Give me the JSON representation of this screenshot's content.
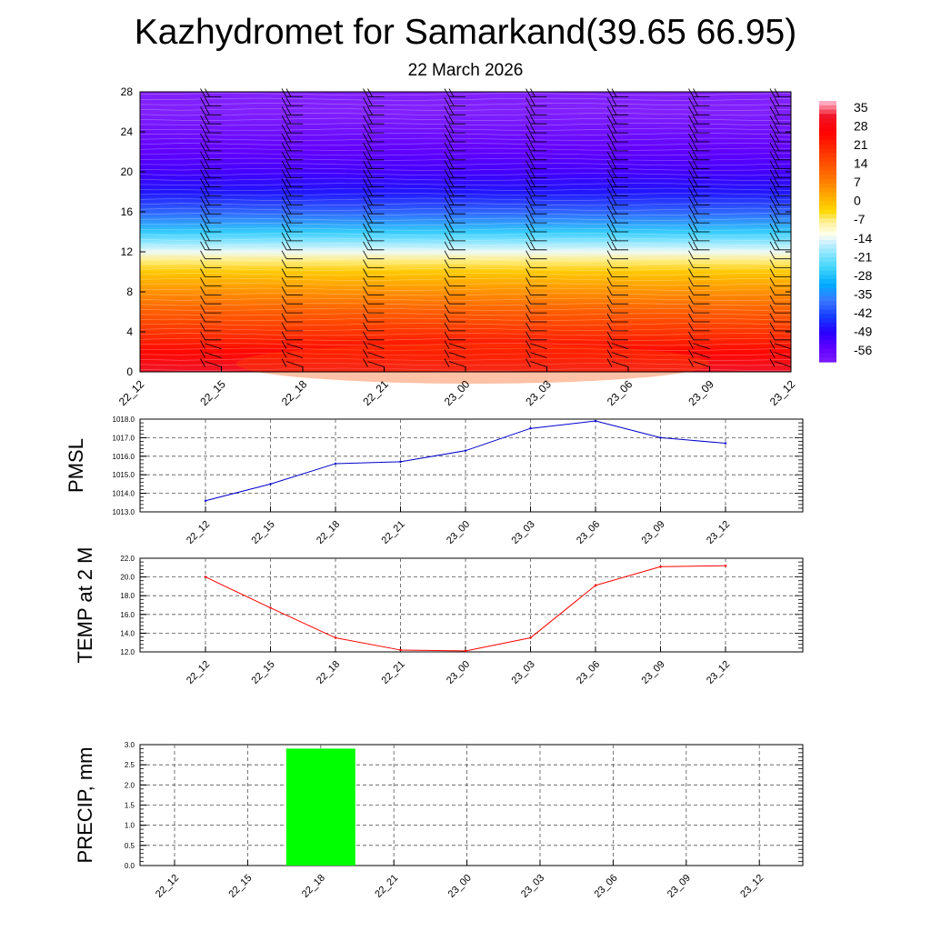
{
  "title": "Kazhydromet for Samarkand(39.65 66.95)",
  "subtitle": "22 March 2026",
  "colors": {
    "pmsl_line": "#0000cc",
    "temp_line": "#ff0000",
    "precip_bar": "#00ff00",
    "grid": "#555555"
  },
  "chart_data": [
    {
      "type": "heatmap",
      "name": "vertical cross-section (temperature and wind barbs)",
      "x_tick_labels": [
        "22_12",
        "22_15",
        "22_18",
        "22_21",
        "23_00",
        "23_03",
        "23_06",
        "23_09",
        "23_12"
      ],
      "y_tick_labels": [
        "0",
        "4",
        "8",
        "12",
        "16",
        "20",
        "24",
        "28"
      ],
      "ylim": [
        0,
        28
      ],
      "colorbar_labels": [
        "35",
        "28",
        "21",
        "14",
        "7",
        "0",
        "-7",
        "-14",
        "-21",
        "-28",
        "-35",
        "-42",
        "-49",
        "-56"
      ],
      "colorbar_range": [
        -60,
        39
      ],
      "profile_levels": [
        0,
        2,
        4,
        6,
        8,
        10,
        11,
        12,
        13,
        14,
        16,
        18,
        20,
        22,
        24,
        26,
        28
      ],
      "profile_values": [
        34,
        27,
        20,
        14,
        7,
        0,
        -5,
        -12,
        -18,
        -25,
        -38,
        -46,
        -51,
        -54,
        -57,
        -60,
        -60
      ],
      "barb_columns": [
        "22_15",
        "22_18",
        "22_21",
        "23_00",
        "23_03",
        "23_06",
        "23_09",
        "23_12"
      ]
    },
    {
      "type": "line",
      "name": "PMSL",
      "ylabel": "PMSL",
      "x": [
        "22_12",
        "22_15",
        "22_18",
        "22_21",
        "23_00",
        "23_03",
        "23_06",
        "23_09",
        "23_12"
      ],
      "values": [
        1013.6,
        1014.5,
        1015.6,
        1015.7,
        1016.3,
        1017.5,
        1017.9,
        1017.0,
        1016.7
      ],
      "ylim": [
        1013.0,
        1018.0
      ],
      "y_tick_labels": [
        "1013.0",
        "1014.0",
        "1015.0",
        "1016.0",
        "1017.0",
        "1018.0"
      ]
    },
    {
      "type": "line",
      "name": "TEMP at 2 M",
      "ylabel": "TEMP at 2 M",
      "x": [
        "22_12",
        "22_15",
        "22_18",
        "22_21",
        "23_00",
        "23_03",
        "23_06",
        "23_09",
        "23_12"
      ],
      "values": [
        20.0,
        16.7,
        13.5,
        12.2,
        12.1,
        13.5,
        19.1,
        21.1,
        21.2
      ],
      "ylim": [
        12.0,
        22.0
      ],
      "y_tick_labels": [
        "12.0",
        "14.0",
        "16.0",
        "18.0",
        "20.0",
        "22.0"
      ]
    },
    {
      "type": "bar",
      "name": "PRECIP, mm",
      "ylabel": "PRECIP, mm",
      "categories": [
        "22_12",
        "22_15",
        "22_18",
        "22_21",
        "23_00",
        "23_03",
        "23_06",
        "23_09",
        "23_12"
      ],
      "values": [
        0,
        0,
        2.9,
        0,
        0,
        0,
        0,
        0,
        0
      ],
      "ylim": [
        0.0,
        3.0
      ],
      "y_tick_labels": [
        "0.0",
        "0.5",
        "1.0",
        "1.5",
        "2.0",
        "2.5",
        "3.0"
      ]
    }
  ]
}
